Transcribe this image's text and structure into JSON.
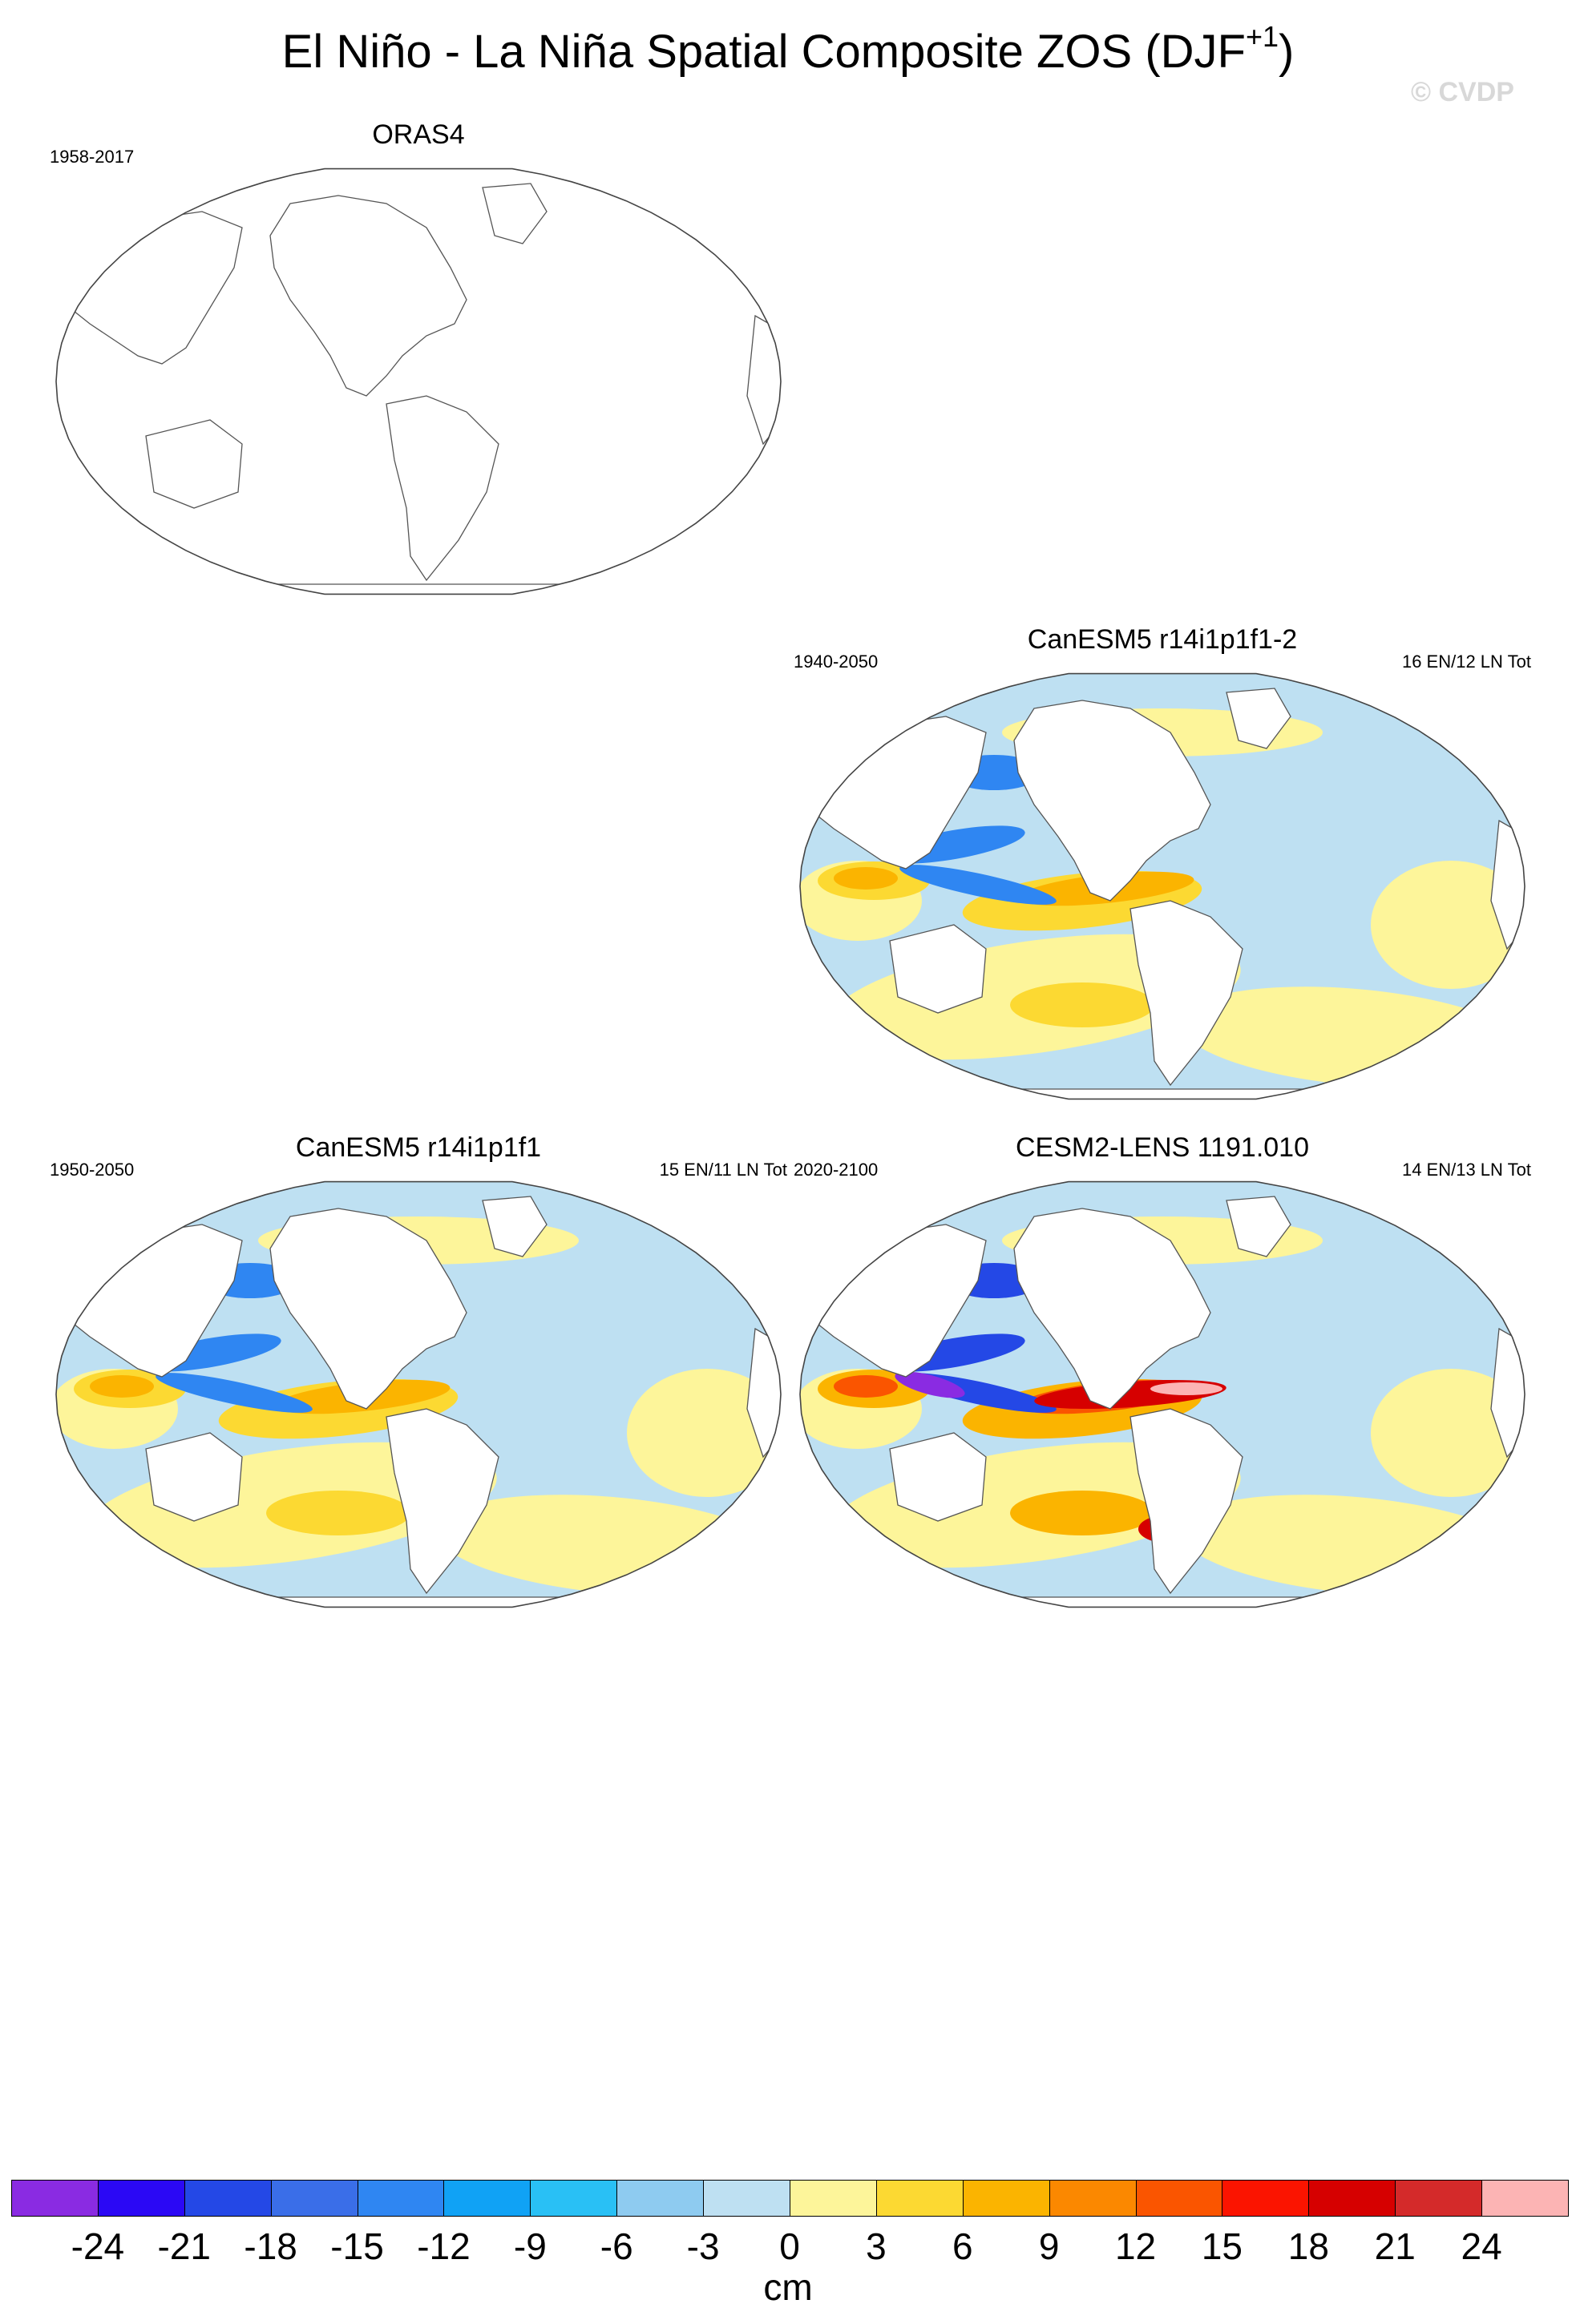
{
  "figure": {
    "title": "El Niño - La Niña Spatial Composite ZOS (DJF",
    "title_sup": "+1",
    "title_close": ")",
    "watermark": "© CVDP"
  },
  "panels": [
    {
      "id": "orasr4",
      "title": "ORAS4",
      "years": "1958-2017",
      "count": "",
      "shaded": false
    },
    {
      "id": "canesm5-2",
      "title": "CanESM5 r14i1p1f1-2",
      "years": "1940-2050",
      "count": "16 EN/12 LN Tot",
      "shaded": true,
      "intensity": 1.0
    },
    {
      "id": "canesm5",
      "title": "CanESM5 r14i1p1f1",
      "years": "1950-2050",
      "count": "15 EN/11 LN Tot",
      "shaded": true,
      "intensity": 1.1
    },
    {
      "id": "cesm2",
      "title": "CESM2-LENS 1191.010",
      "years": "2020-2100",
      "count": "14 EN/13 LN Tot",
      "shaded": true,
      "intensity": 2.0
    }
  ],
  "colorbar": {
    "label": "cm",
    "tick_labels": [
      "-24",
      "-21",
      "-18",
      "-15",
      "-12",
      "-9",
      "-6",
      "-3",
      "0",
      "3",
      "6",
      "9",
      "12",
      "15",
      "18",
      "21",
      "24"
    ],
    "colors": [
      "#8a2be2",
      "#2b08f5",
      "#2448e6",
      "#3a6ee8",
      "#2f86f2",
      "#10a2f5",
      "#29c0f5",
      "#8ecbf0",
      "#bee0f2",
      "#fdf59a",
      "#fcd932",
      "#fbb400",
      "#fb8800",
      "#fa5500",
      "#fb1400",
      "#d60000",
      "#d42a2a",
      "#fcb4b4"
    ]
  }
}
